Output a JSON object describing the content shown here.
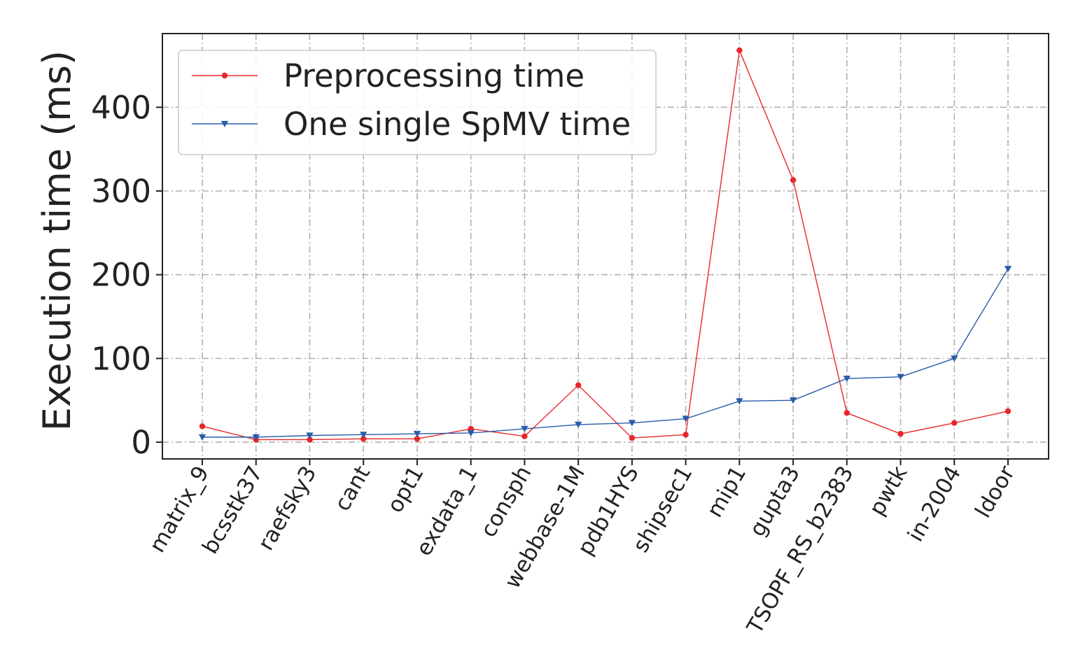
{
  "chart_data": {
    "type": "line",
    "title": "",
    "xlabel": "",
    "ylabel": "Execution time (ms)",
    "categories": [
      "matrix_9",
      "bcsstk37",
      "raefsky3",
      "cant",
      "opt1",
      "exdata_1",
      "consph",
      "webbase-1M",
      "pdb1HYS",
      "shipsec1",
      "mip1",
      "gupta3",
      "TSOPF_RS_b2383",
      "pwtk",
      "in-2004",
      "ldoor"
    ],
    "ylim": [
      -20,
      488
    ],
    "yticks": [
      0,
      100,
      200,
      300,
      400
    ],
    "grid": true,
    "legend_position": "top-left",
    "series": [
      {
        "name": "Preprocessing time",
        "color": "#e8262b",
        "marker": "circle",
        "values": [
          19,
          3,
          3,
          4,
          4,
          16,
          7,
          68,
          5,
          9,
          468,
          313,
          35,
          10,
          23,
          37
        ]
      },
      {
        "name": "One single SpMV time",
        "color": "#2a5caa",
        "marker": "triangle-down",
        "values": [
          6,
          6,
          8,
          9,
          10,
          11,
          16,
          21,
          23,
          28,
          49,
          50,
          76,
          78,
          100,
          207
        ]
      }
    ]
  }
}
